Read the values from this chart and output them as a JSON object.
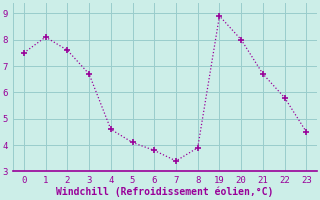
{
  "x_indices": [
    0,
    1,
    2,
    3,
    4,
    5,
    6,
    7,
    8,
    9,
    10,
    11,
    12,
    13
  ],
  "x_labels_vals": [
    0,
    1,
    2,
    3,
    4,
    5,
    6,
    7,
    8,
    19,
    20,
    21,
    22,
    23
  ],
  "y": [
    7.5,
    8.1,
    7.6,
    6.7,
    4.6,
    4.1,
    3.8,
    3.4,
    3.9,
    8.9,
    8.0,
    6.7,
    5.8,
    4.5
  ],
  "line_color": "#990099",
  "marker": "+",
  "marker_size": 4,
  "marker_lw": 1.2,
  "bg_color": "#cceee8",
  "grid_color": "#99cccc",
  "xlabel": "Windchill (Refroidissement éolien,°C)",
  "xlabel_color": "#990099",
  "xlim": [
    -0.5,
    13.5
  ],
  "ylim": [
    3.0,
    9.4
  ],
  "yticks": [
    3,
    4,
    5,
    6,
    7,
    8,
    9
  ],
  "tick_fontsize": 6.5,
  "label_fontsize": 7,
  "line_width": 0.9
}
